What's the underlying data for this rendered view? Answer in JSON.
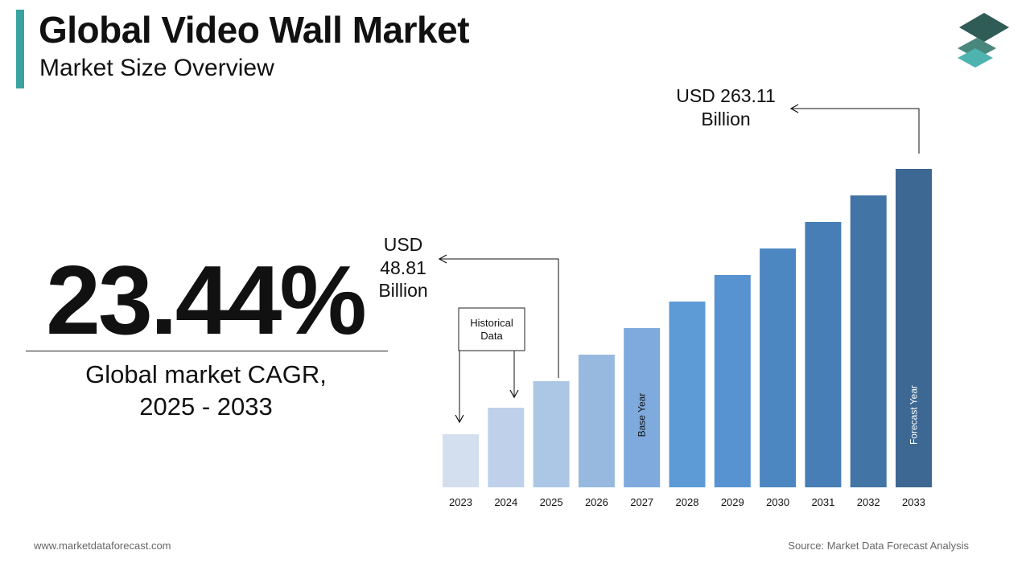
{
  "header": {
    "title": "Global Video Wall Market",
    "subtitle": "Market Size Overview"
  },
  "cagr": {
    "value": "23.44%",
    "caption_line1": "Global market CAGR,",
    "caption_line2": "2025 - 2033"
  },
  "footer": {
    "website": "www.marketdataforecast.com",
    "source": "Source: Market Data Forecast Analysis"
  },
  "colors": {
    "accent": "#3aa3a0",
    "bars": [
      "#d3dfef",
      "#bfd1ea",
      "#acc6e5",
      "#97b9e0",
      "#7eaadd",
      "#5d9bd6",
      "#5693d0",
      "#4c87c2",
      "#477eb5",
      "#4274a6",
      "#3c6893"
    ]
  },
  "chart_data": {
    "type": "bar",
    "categories": [
      "2023",
      "2024",
      "2025",
      "2026",
      "2027",
      "2028",
      "2029",
      "2030",
      "2031",
      "2032",
      "2033"
    ],
    "values": [
      null,
      null,
      48.81,
      null,
      null,
      null,
      null,
      null,
      null,
      null,
      263.11
    ],
    "bar_labels": {
      "base_year": "Base Year",
      "forecast_year": "Forecast Year"
    },
    "callouts": {
      "start": {
        "line1": "USD",
        "line2": "48.81",
        "line3": "Billion"
      },
      "end": {
        "line1": "USD 263.11",
        "line2": "Billion"
      }
    },
    "historical_box": {
      "line1": "Historical",
      "line2": "Data"
    }
  }
}
